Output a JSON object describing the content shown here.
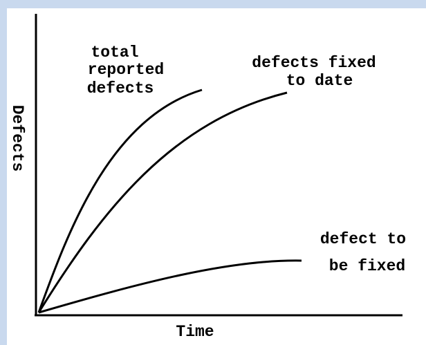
{
  "axes": {
    "y_label": "Defects",
    "x_label": "Time"
  },
  "curves": [
    {
      "label": [
        "total",
        "reported",
        "defects"
      ]
    },
    {
      "label": [
        "defects fixed",
        "to date"
      ]
    },
    {
      "label": [
        "defect to",
        "be fixed"
      ]
    }
  ]
}
